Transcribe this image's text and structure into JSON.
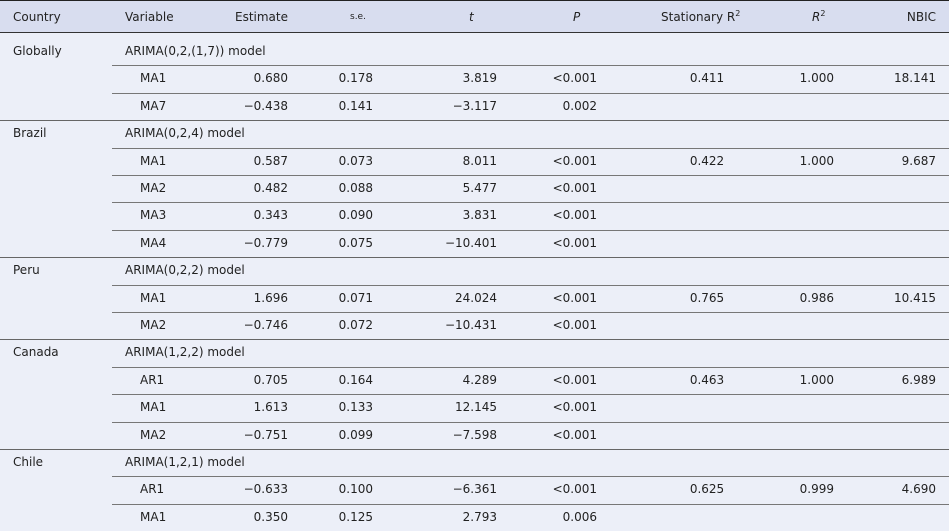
{
  "header": {
    "country": "Country",
    "variable": "Variable",
    "estimate": "Estimate",
    "se": "s.e.",
    "t": "t",
    "p": "P",
    "stationary_r2": "Stationary R",
    "r2": "R",
    "r2_sup": "2",
    "nbic": "NBIC"
  },
  "groups": [
    {
      "country": "Globally",
      "model": "ARIMA(0,2,(1,7))  model",
      "stationary_r2": "0.411",
      "r2": "1.000",
      "nbic": "18.141",
      "rows": [
        {
          "variable": "MA1",
          "estimate": "0.680",
          "se": "0.178",
          "t": "3.819",
          "p": "<0.001"
        },
        {
          "variable": "MA7",
          "estimate": "−0.438",
          "se": "0.141",
          "t": "−3.117",
          "p": "0.002"
        }
      ]
    },
    {
      "country": "Brazil",
      "model": "ARIMA(0,2,4)  model",
      "stationary_r2": "0.422",
      "r2": "1.000",
      "nbic": "9.687",
      "rows": [
        {
          "variable": "MA1",
          "estimate": "0.587",
          "se": "0.073",
          "t": "8.011",
          "p": "<0.001"
        },
        {
          "variable": "MA2",
          "estimate": "0.482",
          "se": "0.088",
          "t": "5.477",
          "p": "<0.001"
        },
        {
          "variable": "MA3",
          "estimate": "0.343",
          "se": "0.090",
          "t": "3.831",
          "p": "<0.001"
        },
        {
          "variable": "MA4",
          "estimate": "−0.779",
          "se": "0.075",
          "t": "−10.401",
          "p": "<0.001"
        }
      ]
    },
    {
      "country": "Peru",
      "model": "ARIMA(0,2,2)  model",
      "stationary_r2": "0.765",
      "r2": "0.986",
      "nbic": "10.415",
      "rows": [
        {
          "variable": "MA1",
          "estimate": "1.696",
          "se": "0.071",
          "t": "24.024",
          "p": "<0.001"
        },
        {
          "variable": "MA2",
          "estimate": "−0.746",
          "se": "0.072",
          "t": "−10.431",
          "p": "<0.001"
        }
      ]
    },
    {
      "country": "Canada",
      "model": "ARIMA(1,2,2)  model",
      "stationary_r2": "0.463",
      "r2": "1.000",
      "nbic": "6.989",
      "rows": [
        {
          "variable": "AR1",
          "estimate": "0.705",
          "se": "0.164",
          "t": "4.289",
          "p": "<0.001"
        },
        {
          "variable": "MA1",
          "estimate": "1.613",
          "se": "0.133",
          "t": "12.145",
          "p": "<0.001"
        },
        {
          "variable": "MA2",
          "estimate": "−0.751",
          "se": "0.099",
          "t": "−7.598",
          "p": "<0.001"
        }
      ]
    },
    {
      "country": "Chile",
      "model": "ARIMA(1,2,1)  model",
      "stationary_r2": "0.625",
      "r2": "0.999",
      "nbic": "4.690",
      "rows": [
        {
          "variable": "AR1",
          "estimate": "−0.633",
          "se": "0.100",
          "t": "−6.361",
          "p": "<0.001"
        },
        {
          "variable": "MA1",
          "estimate": "0.350",
          "se": "0.125",
          "t": "2.793",
          "p": "0.006"
        }
      ]
    }
  ]
}
